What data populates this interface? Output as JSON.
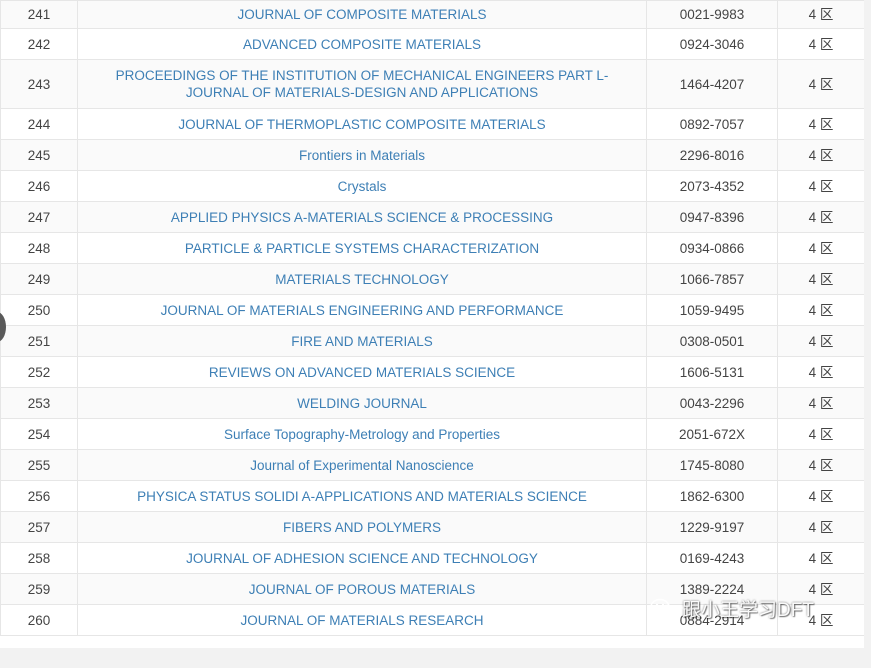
{
  "table": {
    "rows": [
      {
        "rank": "241",
        "name": "JOURNAL OF COMPOSITE MATERIALS",
        "issn": "0021-9983",
        "zone": "4 区"
      },
      {
        "rank": "242",
        "name": "ADVANCED COMPOSITE MATERIALS",
        "issn": "0924-3046",
        "zone": "4 区"
      },
      {
        "rank": "243",
        "name": "PROCEEDINGS OF THE INSTITUTION OF MECHANICAL ENGINEERS PART L-JOURNAL OF MATERIALS-DESIGN AND APPLICATIONS",
        "issn": "1464-4207",
        "zone": "4 区"
      },
      {
        "rank": "244",
        "name": "JOURNAL OF THERMOPLASTIC COMPOSITE MATERIALS",
        "issn": "0892-7057",
        "zone": "4 区"
      },
      {
        "rank": "245",
        "name": "Frontiers in Materials",
        "issn": "2296-8016",
        "zone": "4 区"
      },
      {
        "rank": "246",
        "name": "Crystals",
        "issn": "2073-4352",
        "zone": "4 区"
      },
      {
        "rank": "247",
        "name": "APPLIED PHYSICS A-MATERIALS SCIENCE & PROCESSING",
        "issn": "0947-8396",
        "zone": "4 区"
      },
      {
        "rank": "248",
        "name": "PARTICLE & PARTICLE SYSTEMS CHARACTERIZATION",
        "issn": "0934-0866",
        "zone": "4 区"
      },
      {
        "rank": "249",
        "name": "MATERIALS TECHNOLOGY",
        "issn": "1066-7857",
        "zone": "4 区"
      },
      {
        "rank": "250",
        "name": "JOURNAL OF MATERIALS ENGINEERING AND PERFORMANCE",
        "issn": "1059-9495",
        "zone": "4 区"
      },
      {
        "rank": "251",
        "name": "FIRE AND MATERIALS",
        "issn": "0308-0501",
        "zone": "4 区"
      },
      {
        "rank": "252",
        "name": "REVIEWS ON ADVANCED MATERIALS SCIENCE",
        "issn": "1606-5131",
        "zone": "4 区"
      },
      {
        "rank": "253",
        "name": "WELDING JOURNAL",
        "issn": "0043-2296",
        "zone": "4 区"
      },
      {
        "rank": "254",
        "name": "Surface Topography-Metrology and Properties",
        "issn": "2051-672X",
        "zone": "4 区"
      },
      {
        "rank": "255",
        "name": "Journal of Experimental Nanoscience",
        "issn": "1745-8080",
        "zone": "4 区"
      },
      {
        "rank": "256",
        "name": "PHYSICA STATUS SOLIDI A-APPLICATIONS AND MATERIALS SCIENCE",
        "issn": "1862-6300",
        "zone": "4 区"
      },
      {
        "rank": "257",
        "name": "FIBERS AND POLYMERS",
        "issn": "1229-9197",
        "zone": "4 区"
      },
      {
        "rank": "258",
        "name": "JOURNAL OF ADHESION SCIENCE AND TECHNOLOGY",
        "issn": "0169-4243",
        "zone": "4 区"
      },
      {
        "rank": "259",
        "name": "JOURNAL OF POROUS MATERIALS",
        "issn": "1389-2224",
        "zone": "4 区"
      },
      {
        "rank": "260",
        "name": "JOURNAL OF MATERIALS RESEARCH",
        "issn": "0884-2914",
        "zone": "4 区"
      }
    ]
  },
  "watermark": {
    "text": "跟小王学习DFT",
    "icon": "wechat-icon"
  },
  "colors": {
    "link": "#3d7fb5",
    "text": "#444444",
    "border": "#e6e6e6",
    "page_background": "#f2f2f2"
  }
}
